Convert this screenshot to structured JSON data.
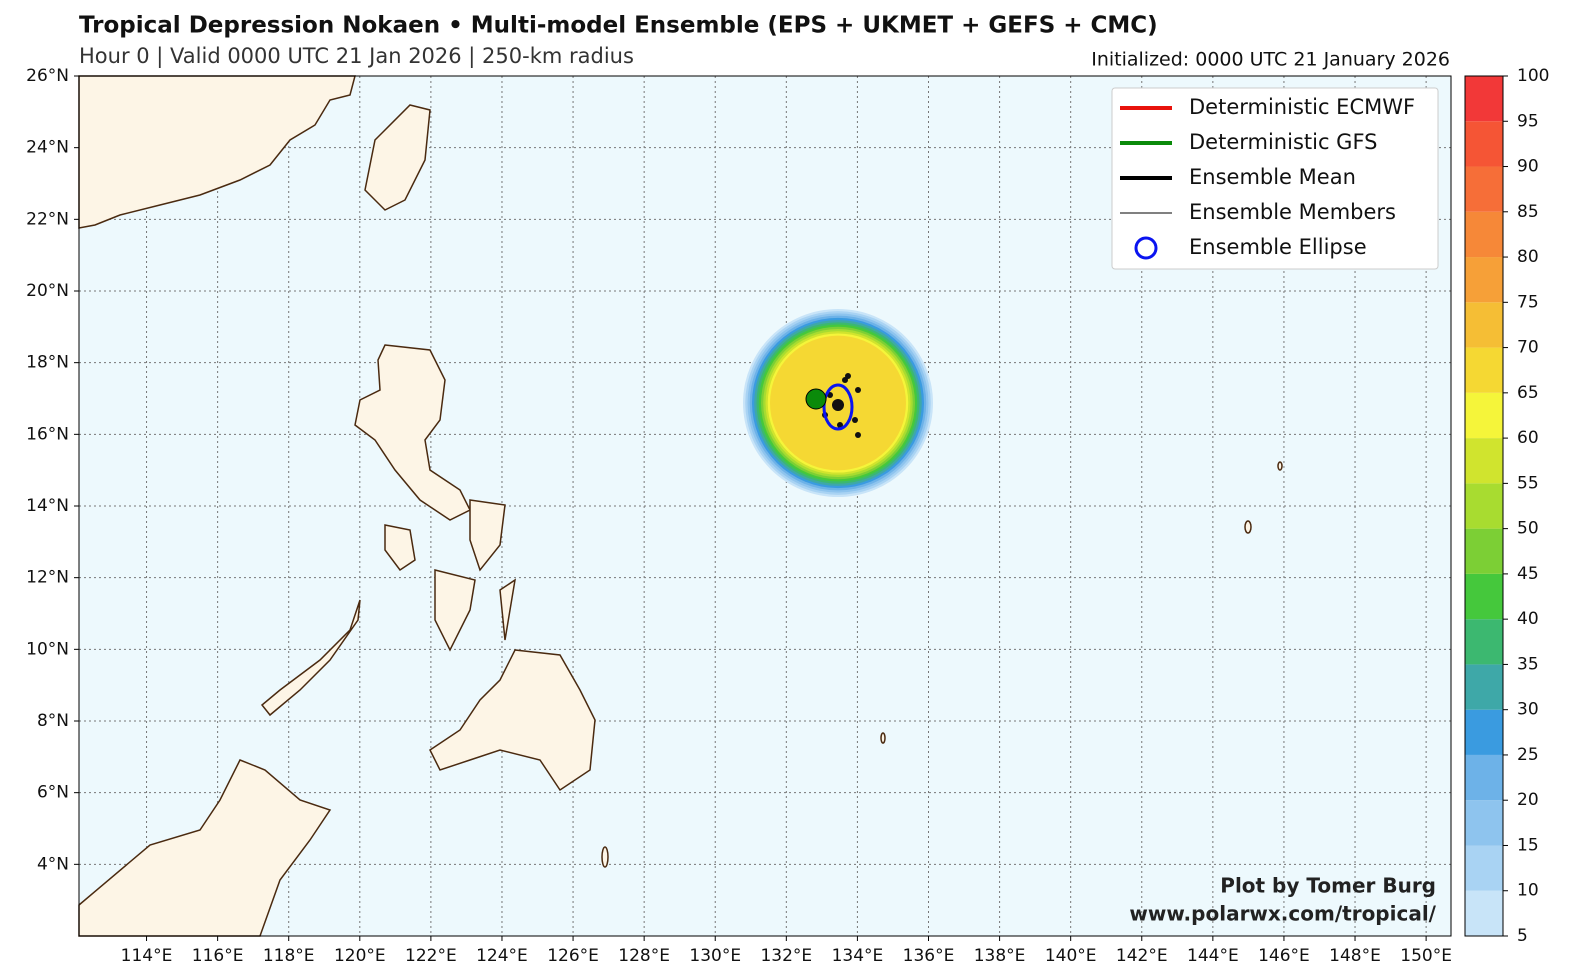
{
  "header": {
    "title": "Tropical Depression Nokaen • Multi-model Ensemble (EPS + UKMET + GEFS + CMC)",
    "subtitle": "Hour 0 | Valid 0000 UTC 21 Jan 2026 | 250-km radius",
    "initialized": "Initialized: 0000 UTC 21 January 2026"
  },
  "map": {
    "xlim": [
      112.1,
      150.7
    ],
    "ylim": [
      2,
      26
    ],
    "grid": true,
    "xticks": [
      {
        "value": 114,
        "label": "114°E"
      },
      {
        "value": 116,
        "label": "116°E"
      },
      {
        "value": 118,
        "label": "118°E"
      },
      {
        "value": 120,
        "label": "120°E"
      },
      {
        "value": 122,
        "label": "122°E"
      },
      {
        "value": 124,
        "label": "124°E"
      },
      {
        "value": 126,
        "label": "126°E"
      },
      {
        "value": 128,
        "label": "128°E"
      },
      {
        "value": 130,
        "label": "130°E"
      },
      {
        "value": 132,
        "label": "132°E"
      },
      {
        "value": 134,
        "label": "134°E"
      },
      {
        "value": 136,
        "label": "136°E"
      },
      {
        "value": 138,
        "label": "138°E"
      },
      {
        "value": 140,
        "label": "140°E"
      },
      {
        "value": 142,
        "label": "142°E"
      },
      {
        "value": 144,
        "label": "144°E"
      },
      {
        "value": 146,
        "label": "146°E"
      },
      {
        "value": 148,
        "label": "148°E"
      },
      {
        "value": 150,
        "label": "150°E"
      }
    ],
    "yticks": [
      {
        "value": 4,
        "label": "4°N"
      },
      {
        "value": 6,
        "label": "6°N"
      },
      {
        "value": 8,
        "label": "8°N"
      },
      {
        "value": 10,
        "label": "10°N"
      },
      {
        "value": 12,
        "label": "12°N"
      },
      {
        "value": 14,
        "label": "14°N"
      },
      {
        "value": 16,
        "label": "16°N"
      },
      {
        "value": 18,
        "label": "18°N"
      },
      {
        "value": 20,
        "label": "20°N"
      },
      {
        "value": 22,
        "label": "22°N"
      },
      {
        "value": 24,
        "label": "24°N"
      },
      {
        "value": 26,
        "label": "26°N"
      }
    ]
  },
  "legend": {
    "items": [
      {
        "name": "Deterministic ECMWF",
        "color": "#e8120c",
        "style": "line"
      },
      {
        "name": "Deterministic GFS",
        "color": "#0a8a0a",
        "style": "line"
      },
      {
        "name": "Ensemble Mean",
        "color": "#000000",
        "style": "line"
      },
      {
        "name": "Ensemble Members",
        "color": "#000000",
        "style": "thin"
      },
      {
        "name": "Ensemble Ellipse",
        "color": "#0a14f0",
        "style": "circle"
      }
    ]
  },
  "colorbar": {
    "ticks": [
      5,
      10,
      15,
      20,
      25,
      30,
      35,
      40,
      45,
      50,
      55,
      60,
      65,
      70,
      75,
      80,
      85,
      90,
      95,
      100
    ],
    "colors": [
      "#c8e4f8",
      "#a9d3f3",
      "#8ec4ee",
      "#6db2e8",
      "#3a9be0",
      "#3ea8a8",
      "#3cb870",
      "#45c83c",
      "#7ccf35",
      "#a8dc30",
      "#d0e42e",
      "#f5f53a",
      "#f5d833",
      "#f5be35",
      "#f6a038",
      "#f68838",
      "#f66e38",
      "#f55535",
      "#f23838"
    ]
  },
  "credit": {
    "line1": "Plot by Tomer Burg",
    "line2": "www.polarwx.com/tropical/"
  }
}
